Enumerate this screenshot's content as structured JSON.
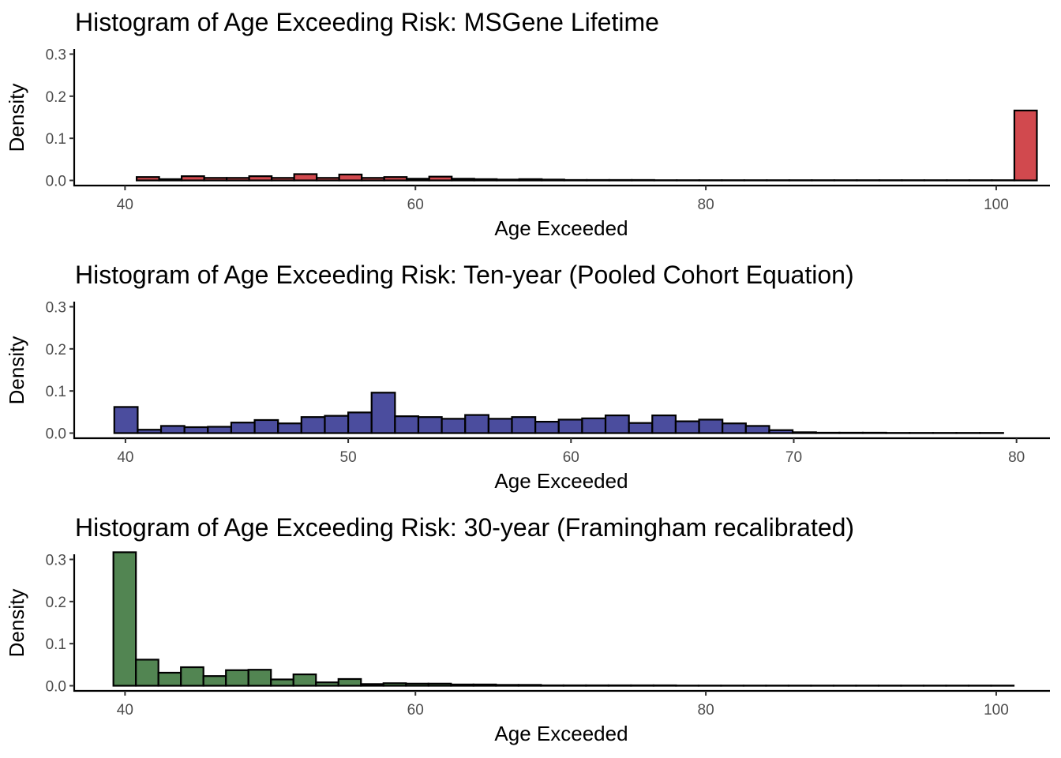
{
  "chart_data": [
    {
      "type": "bar",
      "title": "Histogram of Age Exceeding Risk: MSGene Lifetime",
      "xlabel": "Age Exceeded",
      "ylabel": "Density",
      "xlim": [
        36.5,
        103.7
      ],
      "ylim": [
        -0.011,
        0.31
      ],
      "xticks": [
        "40",
        "60",
        "80",
        "100"
      ],
      "yticks": [
        "0.0",
        "0.1",
        "0.2",
        "0.3"
      ],
      "fill": "#d1494e",
      "grid": false,
      "bins": {
        "start": 40.8,
        "width": 1.55,
        "values": [
          0.008,
          0.003,
          0.01,
          0.006,
          0.006,
          0.01,
          0.006,
          0.015,
          0.006,
          0.014,
          0.006,
          0.008,
          0.004,
          0.009,
          0.004,
          0.003,
          0.002,
          0.003,
          0.002,
          0.001,
          0.001,
          0.001,
          0.001,
          0.0005,
          0.0005,
          0.0005,
          0.0005,
          0.0005,
          0.0005,
          0.0005,
          0.0005,
          0.0005,
          0.0005,
          0.0005,
          0.0005,
          0.0005,
          0.0005,
          0.0005,
          0.0005,
          0.166
        ]
      }
    },
    {
      "type": "bar",
      "title": "Histogram of Age Exceeding Risk: Ten-year (Pooled Cohort Equation)",
      "xlabel": "Age Exceeded",
      "ylabel": "Density",
      "xlim": [
        37.7,
        81.5
      ],
      "ylim": [
        -0.011,
        0.31
      ],
      "xticks": [
        "40",
        "50",
        "60",
        "70",
        "80"
      ],
      "yticks": [
        "0.0",
        "0.1",
        "0.2",
        "0.3"
      ],
      "fill": "#4b4d9e",
      "grid": false,
      "bins": {
        "start": 39.5,
        "width": 1.05,
        "values": [
          0.062,
          0.008,
          0.017,
          0.014,
          0.015,
          0.025,
          0.031,
          0.023,
          0.038,
          0.041,
          0.049,
          0.096,
          0.04,
          0.038,
          0.034,
          0.043,
          0.034,
          0.038,
          0.027,
          0.032,
          0.035,
          0.042,
          0.024,
          0.042,
          0.028,
          0.032,
          0.023,
          0.017,
          0.007,
          0.002,
          0.001,
          0.001,
          0.001,
          0.0005,
          0.0005,
          0.0005,
          0.0005,
          0.0005
        ]
      }
    },
    {
      "type": "bar",
      "title": "Histogram of Age Exceeding Risk: 30-year (Framingham recalibrated)",
      "xlabel": "Age Exceeded",
      "ylabel": "Density",
      "xlim": [
        36.5,
        103.7
      ],
      "ylim": [
        -0.011,
        0.31
      ],
      "xticks": [
        "40",
        "60",
        "80",
        "100"
      ],
      "yticks": [
        "0.0",
        "0.1",
        "0.2",
        "0.3"
      ],
      "fill": "#528552",
      "grid": false,
      "bins": {
        "start": 39.2,
        "width": 1.55,
        "values": [
          0.317,
          0.062,
          0.031,
          0.044,
          0.023,
          0.037,
          0.038,
          0.015,
          0.027,
          0.008,
          0.016,
          0.004,
          0.006,
          0.005,
          0.005,
          0.003,
          0.003,
          0.002,
          0.002,
          0.001,
          0.001,
          0.001,
          0.001,
          0.001,
          0.001,
          0.0005,
          0.0005,
          0.0005,
          0.0005,
          0.0005,
          0.0005,
          0.0005,
          0.0005,
          0.0005,
          0.0005,
          0.0005,
          0.0005,
          0.0005,
          0.0005,
          0.0005
        ]
      }
    }
  ]
}
